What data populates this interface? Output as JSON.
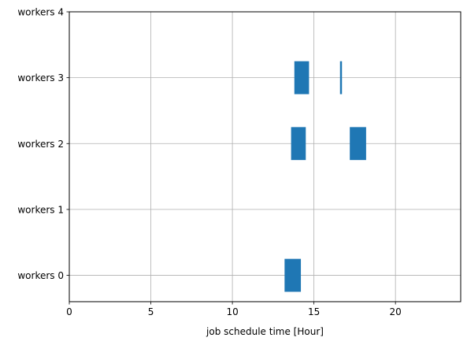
{
  "chart_data": {
    "type": "broken_barh",
    "title": "",
    "xlabel": "job schedule time [Hour]",
    "ylabel": "",
    "xlim": [
      0,
      24
    ],
    "ylim": [
      -0.4,
      4
    ],
    "grid": true,
    "x_ticks": [
      0,
      5,
      10,
      15,
      20
    ],
    "x_tick_labels": [
      "0",
      "5",
      "10",
      "15",
      "20"
    ],
    "y_ticks": [
      0,
      1,
      2,
      3,
      4
    ],
    "y_tick_labels": [
      "workers 0",
      "workers 1",
      "workers 2",
      "workers 3",
      "workers 4"
    ],
    "bar_height": 0.5,
    "bar_color": "#1f77b4",
    "tasks": [
      {
        "worker": 0,
        "start": 13.2,
        "duration": 1.0
      },
      {
        "worker": 2,
        "start": 13.6,
        "duration": 0.9
      },
      {
        "worker": 2,
        "start": 17.2,
        "duration": 1.0
      },
      {
        "worker": 3,
        "start": 13.8,
        "duration": 0.9
      },
      {
        "worker": 3,
        "start": 16.6,
        "duration": 0.12
      }
    ]
  }
}
